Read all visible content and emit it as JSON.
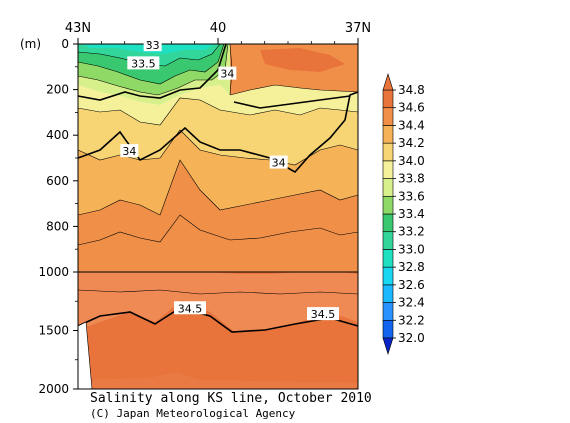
{
  "chart_data": {
    "type": "heatmap",
    "title": "Salinity along KS line, October 2010",
    "credit": "(C) Japan Meteorological Agency",
    "x_axis": {
      "ticks": [
        "43N",
        "40",
        "37N"
      ],
      "range": [
        43,
        37
      ]
    },
    "y_axis": {
      "unit_label": "(m)",
      "upper_ticks": [
        "0",
        "200",
        "400",
        "600",
        "800",
        "1000"
      ],
      "lower_ticks": [
        "1500",
        "2000"
      ],
      "upper_range": [
        0,
        1000
      ],
      "lower_range": [
        1000,
        2000
      ]
    },
    "colorbar": {
      "levels": [
        "32.0",
        "32.2",
        "32.4",
        "32.6",
        "32.8",
        "33.0",
        "33.2",
        "33.4",
        "33.6",
        "33.8",
        "34.0",
        "34.2",
        "34.4",
        "34.6",
        "34.8"
      ],
      "colors": [
        "#0a24c8",
        "#1464f0",
        "#2a92ff",
        "#19b9ff",
        "#18d7f0",
        "#1fe0c0",
        "#33d69a",
        "#39c76f",
        "#8fd966",
        "#d8f08c",
        "#f5f19a",
        "#f7d474",
        "#f5b257",
        "#f08f48",
        "#e8743c"
      ]
    },
    "contour_labels": [
      {
        "text": "33",
        "lat": 41.4,
        "depth": 5
      },
      {
        "text": "33.5",
        "lat": 41.6,
        "depth": 85
      },
      {
        "text": "34",
        "lat": 39.8,
        "depth": 130
      },
      {
        "text": "34",
        "lat": 41.9,
        "depth": 470
      },
      {
        "text": "34",
        "lat": 38.7,
        "depth": 520
      },
      {
        "text": "34.5",
        "lat": 40.6,
        "depth": 1310
      },
      {
        "text": "34.5",
        "lat": 37.75,
        "depth": 1360
      }
    ]
  }
}
